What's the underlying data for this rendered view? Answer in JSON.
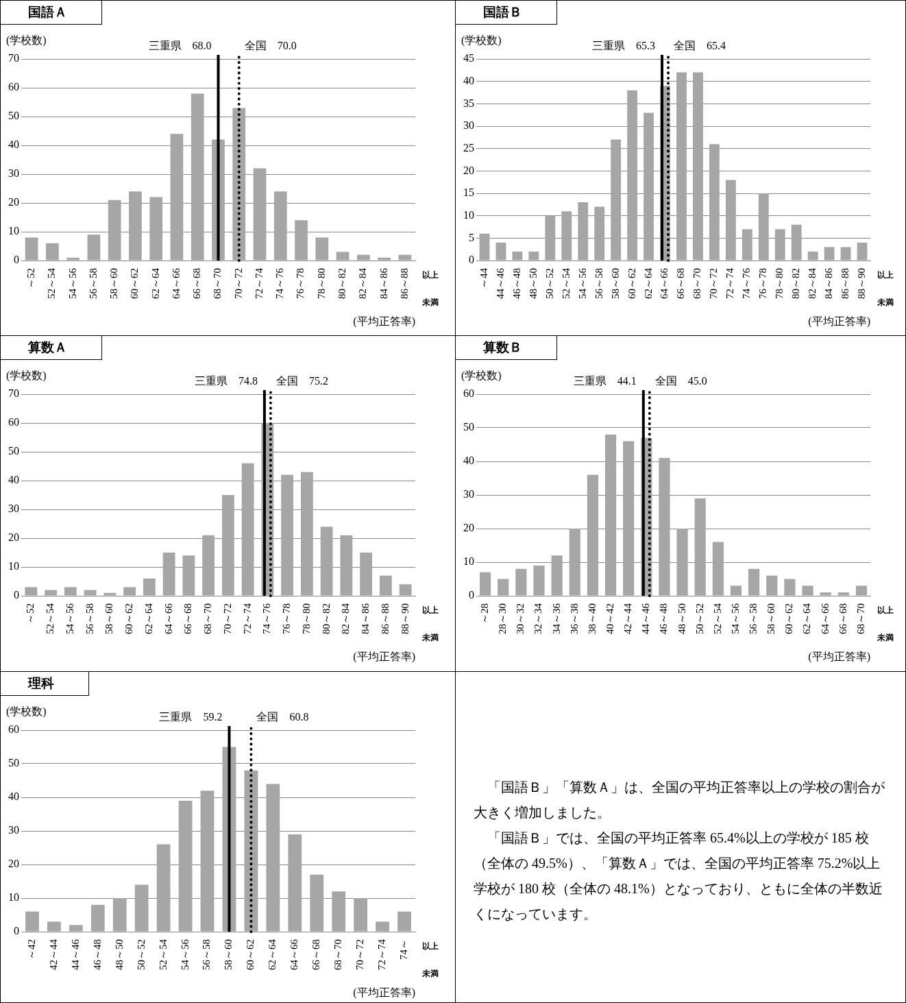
{
  "chart_data": [
    {
      "type": "bar",
      "title": "国語Ａ",
      "xlabel": "(平均正答率)",
      "ylabel": "(学校数)",
      "color": "#a6a6a6",
      "grid": "y",
      "categories": [
        "～52",
        "52～54",
        "54～56",
        "56～58",
        "58～60",
        "60～62",
        "62～64",
        "64～66",
        "66～68",
        "68～70",
        "70～72",
        "72～74",
        "74～76",
        "76～78",
        "78～80",
        "80～82",
        "82～84",
        "84～86",
        "86～88"
      ],
      "values": [
        8,
        6,
        1,
        9,
        21,
        24,
        22,
        44,
        58,
        42,
        53,
        32,
        24,
        14,
        8,
        3,
        2,
        1,
        2
      ],
      "ylim": [
        0,
        70
      ],
      "yticks": [
        0,
        10,
        20,
        30,
        40,
        50,
        60,
        70
      ],
      "ref_lines": [
        {
          "axis": "x",
          "value": "68～70",
          "label": "三重県　68.0",
          "color": "#000000",
          "line_style": "solid"
        },
        {
          "axis": "x",
          "value": "70～72",
          "label": "全国　70.0",
          "color": "#000000",
          "line_style": "dotted"
        }
      ],
      "annotations": [
        "以上",
        "未満"
      ]
    },
    {
      "type": "bar",
      "title": "国語Ｂ",
      "xlabel": "(平均正答率)",
      "ylabel": "(学校数)",
      "color": "#a6a6a6",
      "grid": "y",
      "categories": [
        "～44",
        "44～46",
        "46～48",
        "48～50",
        "50～52",
        "52～54",
        "54～56",
        "56～58",
        "58～60",
        "60～62",
        "62～64",
        "64～66",
        "66～68",
        "68～70",
        "70～72",
        "72～74",
        "74～76",
        "76～78",
        "78～80",
        "80～82",
        "82～84",
        "84～86",
        "86～88",
        "88～90"
      ],
      "values": [
        6,
        4,
        2,
        2,
        10,
        11,
        13,
        12,
        27,
        38,
        33,
        39,
        42,
        42,
        26,
        18,
        7,
        15,
        7,
        8,
        2,
        3,
        3,
        4
      ],
      "ylim": [
        0,
        45
      ],
      "yticks": [
        0,
        5,
        10,
        15,
        20,
        25,
        30,
        35,
        40,
        45
      ],
      "ref_lines": [
        {
          "axis": "x",
          "value": "64～66",
          "label": "三重県　65.3",
          "color": "#000000",
          "line_style": "solid"
        },
        {
          "axis": "x",
          "value": "64～66",
          "label": "全国　65.4",
          "color": "#000000",
          "line_style": "dotted"
        }
      ],
      "annotations": [
        "以上",
        "未満"
      ]
    },
    {
      "type": "bar",
      "title": "算数Ａ",
      "xlabel": "(平均正答率)",
      "ylabel": "(学校数)",
      "color": "#a6a6a6",
      "grid": "y",
      "categories": [
        "～52",
        "52～54",
        "54～56",
        "56～58",
        "58～60",
        "60～62",
        "62～64",
        "64～66",
        "66～68",
        "68～70",
        "70～72",
        "72～74",
        "74～76",
        "76～78",
        "78～80",
        "80～82",
        "82～84",
        "84～86",
        "86～88",
        "88～90"
      ],
      "values": [
        3,
        2,
        3,
        2,
        1,
        3,
        6,
        15,
        14,
        21,
        35,
        46,
        60,
        42,
        43,
        24,
        21,
        15,
        7,
        4
      ],
      "ylim": [
        0,
        70
      ],
      "yticks": [
        0,
        10,
        20,
        30,
        40,
        50,
        60,
        70
      ],
      "ref_lines": [
        {
          "axis": "x",
          "value": "74～76",
          "label": "三重県　74.8",
          "color": "#000000",
          "line_style": "solid"
        },
        {
          "axis": "x",
          "value": "74～76",
          "label": "全国　75.2",
          "color": "#000000",
          "line_style": "dotted"
        }
      ],
      "annotations": [
        "以上",
        "未満"
      ]
    },
    {
      "type": "bar",
      "title": "算数Ｂ",
      "xlabel": "(平均正答率)",
      "ylabel": "(学校数)",
      "color": "#a6a6a6",
      "grid": "y",
      "categories": [
        "～28",
        "28～30",
        "30～32",
        "32～34",
        "34～36",
        "36～38",
        "38～40",
        "40～42",
        "42～44",
        "44～46",
        "46～48",
        "48～50",
        "50～52",
        "52～54",
        "54～56",
        "56～58",
        "58～60",
        "60～62",
        "62～64",
        "64～66",
        "66～68",
        "68～70"
      ],
      "values": [
        7,
        5,
        8,
        9,
        12,
        20,
        36,
        48,
        46,
        47,
        41,
        20,
        29,
        16,
        3,
        8,
        6,
        5,
        3,
        1,
        1,
        3
      ],
      "ylim": [
        0,
        60
      ],
      "yticks": [
        0,
        10,
        20,
        30,
        40,
        50,
        60
      ],
      "ref_lines": [
        {
          "axis": "x",
          "value": "44～46",
          "label": "三重県　44.1",
          "color": "#000000",
          "line_style": "solid"
        },
        {
          "axis": "x",
          "value": "44～46",
          "label": "全国　45.0",
          "color": "#000000",
          "line_style": "dotted"
        }
      ],
      "annotations": [
        "以上",
        "未満"
      ]
    },
    {
      "type": "bar",
      "title": "理科",
      "xlabel": "(平均正答率)",
      "ylabel": "(学校数)",
      "color": "#a6a6a6",
      "grid": "y",
      "categories": [
        "～42",
        "42～44",
        "44～46",
        "46～48",
        "48～50",
        "50～52",
        "52～54",
        "54～56",
        "56～58",
        "58～60",
        "60～62",
        "62～64",
        "64～66",
        "66～68",
        "68～70",
        "70～72",
        "72～74",
        "74～"
      ],
      "values": [
        6,
        3,
        2,
        8,
        10,
        14,
        26,
        39,
        42,
        55,
        48,
        44,
        29,
        17,
        12,
        10,
        3,
        6
      ],
      "ylim": [
        0,
        60
      ],
      "yticks": [
        0,
        10,
        20,
        30,
        40,
        50,
        60
      ],
      "ref_lines": [
        {
          "axis": "x",
          "value": "58～60",
          "label": "三重県　59.2",
          "color": "#000000",
          "line_style": "solid"
        },
        {
          "axis": "x",
          "value": "60～62",
          "label": "全国　60.8",
          "color": "#000000",
          "line_style": "dotted"
        }
      ],
      "annotations": [
        "以上",
        "未満"
      ]
    },
    {
      "type": "other",
      "annotations": [
        "「国語Ｂ」「算数Ａ」は、全国の平均正答率以上の学校の割合が大きく増加しました。",
        "「国語Ｂ」では、全国の平均正答率 65.4%以上の学校が 185 校（全体の 49.5%）、「算数Ａ」では、全国の平均正答率 75.2%以上学校が 180 校（全体の 48.1%）となっており、ともに全体の半数近くになっています。"
      ]
    }
  ]
}
